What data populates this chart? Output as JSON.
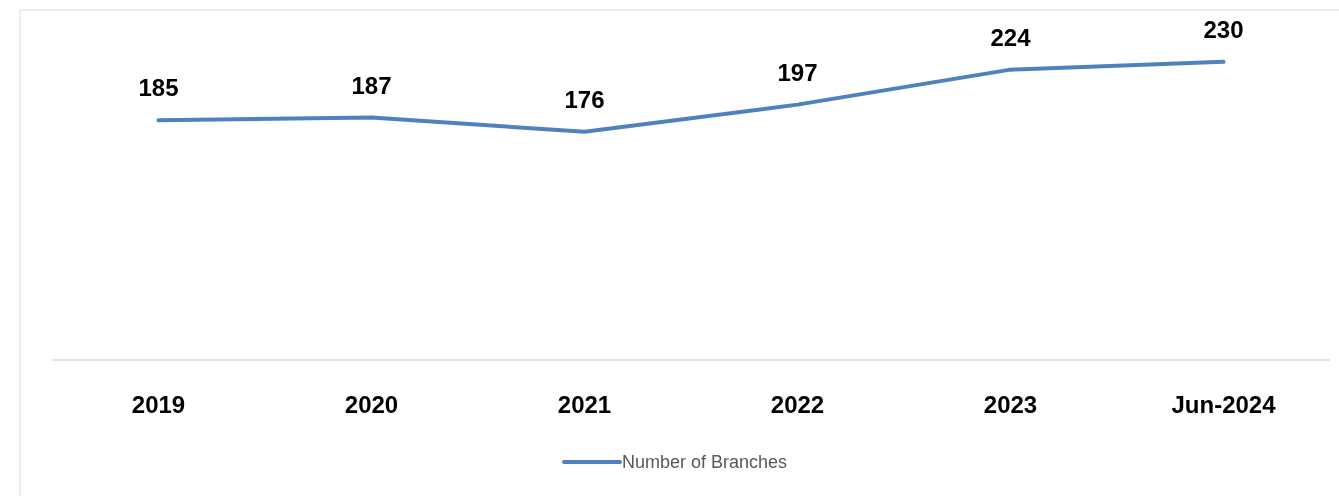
{
  "chart_data": {
    "type": "line",
    "categories": [
      "2019",
      "2020",
      "2021",
      "2022",
      "2023",
      "Jun-2024"
    ],
    "series": [
      {
        "name": "Number of Branches",
        "color": "#4f81bd",
        "values": [
          185,
          187,
          176,
          197,
          224,
          230
        ]
      }
    ],
    "ylim": [
      0,
      270
    ],
    "tick_labels": "x",
    "data_labels": true,
    "legend": "bottom",
    "marker": "none",
    "line_style": "solid"
  }
}
